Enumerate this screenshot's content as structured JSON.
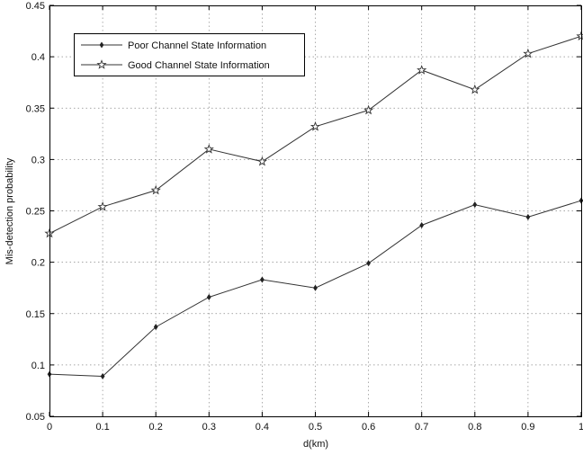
{
  "chart_data": {
    "type": "line",
    "xlabel": "d(km)",
    "ylabel": "Mis-detection probability",
    "x": [
      0,
      0.1,
      0.2,
      0.3,
      0.4,
      0.5,
      0.6,
      0.7,
      0.8,
      0.9,
      1
    ],
    "xlim": [
      0,
      1
    ],
    "ylim": [
      0.05,
      0.45
    ],
    "xticks": [
      0,
      0.1,
      0.2,
      0.3,
      0.4,
      0.5,
      0.6,
      0.7,
      0.8,
      0.9,
      1
    ],
    "yticks": [
      0.05,
      0.1,
      0.15,
      0.2,
      0.25,
      0.3,
      0.35,
      0.4,
      0.45
    ],
    "xtick_labels": [
      "0",
      "0.1",
      "0.2",
      "0.3",
      "0.4",
      "0.5",
      "0.6",
      "0.7",
      "0.8",
      "0.9",
      "1"
    ],
    "ytick_labels": [
      "0.05",
      "0.1",
      "0.15",
      "0.2",
      "0.25",
      "0.3",
      "0.35",
      "0.4",
      "0.45"
    ],
    "grid": true,
    "legend_position": "top-left",
    "series": [
      {
        "name": "Poor Channel State Information",
        "marker": "diamond",
        "color": "#333333",
        "values": [
          0.091,
          0.089,
          0.137,
          0.166,
          0.183,
          0.175,
          0.199,
          0.236,
          0.256,
          0.244,
          0.26
        ]
      },
      {
        "name": "Good Channel State Information",
        "marker": "star",
        "color": "#333333",
        "values": [
          0.228,
          0.254,
          0.27,
          0.31,
          0.298,
          0.332,
          0.348,
          0.387,
          0.368,
          0.403,
          0.42
        ]
      }
    ]
  }
}
